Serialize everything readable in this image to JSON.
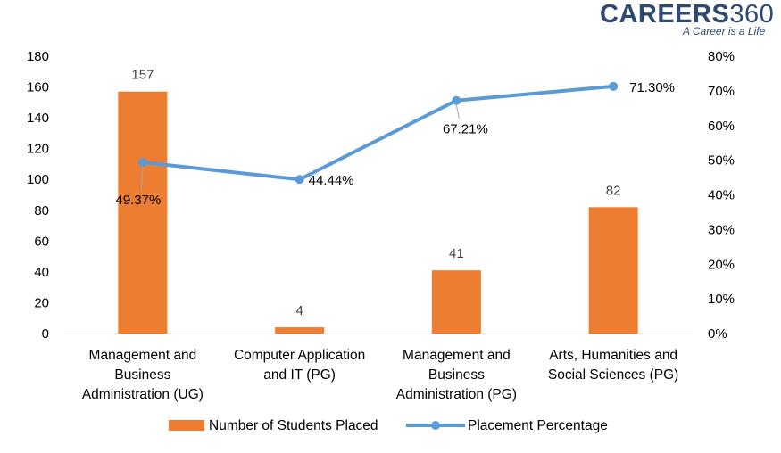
{
  "logo": {
    "brand": "CAREERS",
    "number": "360",
    "tagline": "A Career is a Life"
  },
  "colors": {
    "bar": "#ed7d31",
    "line": "#5b9bd5",
    "axis": "#d9d9d9",
    "leader": "#a6a6a6"
  },
  "chart_data": {
    "type": "bar",
    "categories": [
      [
        "Management and",
        "Business",
        "Administration (UG)"
      ],
      [
        "Computer Application",
        "and IT (PG)"
      ],
      [
        "Management and",
        "Business",
        "Administration (PG)"
      ],
      [
        "Arts, Humanities and",
        "Social Sciences (PG)"
      ]
    ],
    "series": [
      {
        "name": "Number of Students Placed",
        "type": "bar",
        "axis": "left",
        "values": [
          157,
          4,
          41,
          82
        ],
        "labels": [
          "157",
          "4",
          "41",
          "82"
        ]
      },
      {
        "name": "Placement Percentage",
        "type": "line",
        "axis": "right",
        "values": [
          49.37,
          44.44,
          67.21,
          71.3
        ],
        "labels": [
          "49.37%",
          "44.44%",
          "67.21%",
          "71.30%"
        ]
      }
    ],
    "y_left": {
      "min": 0,
      "max": 180,
      "ticks": [
        "0",
        "20",
        "40",
        "60",
        "80",
        "100",
        "120",
        "140",
        "160",
        "180"
      ]
    },
    "y_right": {
      "min": 0,
      "max": 80,
      "ticks": [
        "0%",
        "10%",
        "20%",
        "30%",
        "40%",
        "50%",
        "60%",
        "70%",
        "80%"
      ]
    },
    "grid": false,
    "legend": "bottom"
  }
}
